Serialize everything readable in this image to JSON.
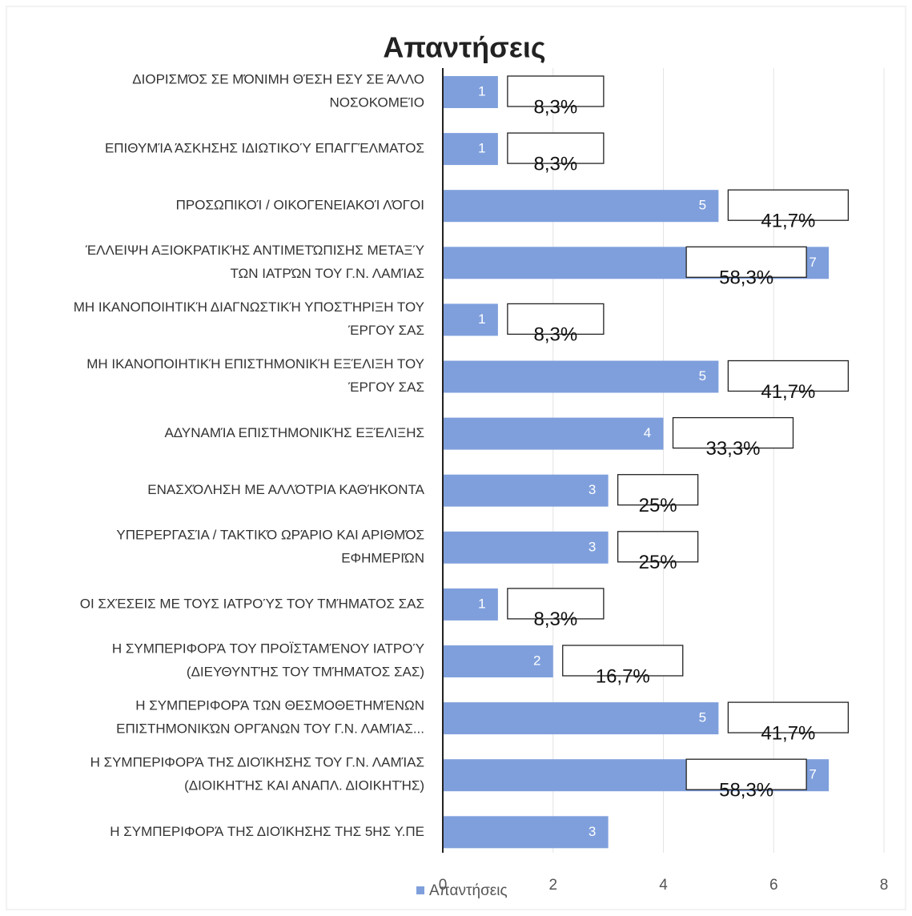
{
  "chart_data": {
    "type": "bar",
    "orientation": "horizontal",
    "title": "Απαντήσεις",
    "categories": [
      "ΔΙΟΡΙΣΜΌΣ ΣΕ ΜΌΝΙΜΗ ΘΈΣΗ ΕΣΥ ΣΕ ΆΛΛΟ\nΝΟΣΟΚΟΜΕΊΟ",
      "ΕΠΙΘΥΜΊΑ ΆΣΚΗΣΗΣ ΙΔΙΩΤΙΚΟΎ ΕΠΑΓΓΈΛΜΑΤΟΣ",
      "ΠΡΟΣΩΠΙΚΟΊ / ΟΙΚΟΓΕΝΕΙΑΚΟΊ ΛΌΓΟΙ",
      "ΈΛΛΕΙΨΗ ΑΞΙΟΚΡΑΤΙΚΉΣ ΑΝΤΙΜΕΤΏΠΙΣΗΣ ΜΕΤΑΞΎ\nΤΩΝ ΙΑΤΡΏΝ ΤΟΥ Γ.Ν. ΛΑΜΊΑΣ",
      "ΜΗ ΙΚΑΝΟΠΟΙΗΤΙΚΉ ΔΙΑΓΝΩΣΤΙΚΉ ΥΠΟΣΤΉΡΙΞΗ ΤΟΥ\nΈΡΓΟΥ ΣΑΣ",
      "ΜΗ ΙΚΑΝΟΠΟΙΗΤΙΚΉ ΕΠΙΣΤΗΜΟΝΙΚΉ ΕΞΈΛΙΞΗ ΤΟΥ\nΈΡΓΟΥ ΣΑΣ",
      "ΑΔΥΝΑΜΊΑ ΕΠΙΣΤΗΜΟΝΙΚΉΣ ΕΞΈΛΙΞΗΣ",
      "ΕΝΑΣΧΌΛΗΣΗ ΜΕ ΑΛΛΌΤΡΙΑ ΚΑΘΉΚΟΝΤΑ",
      "ΥΠΕΡΕΡΓΑΣΊΑ / ΤΑΚΤΙΚΌ ΩΡΆΡΙΟ ΚΑΙ ΑΡΙΘΜΌΣ\nΕΦΗΜΕΡΙΏΝ",
      "ΟΙ ΣΧΈΣΕΙΣ ΜΕ ΤΟΥΣ ΙΑΤΡΟΎΣ ΤΟΥ ΤΜΉΜΑΤΟΣ ΣΑΣ",
      "Η ΣΥΜΠΕΡΙΦΟΡΆ ΤΟΥ ΠΡΟΪΣΤΑΜΈΝΟΥ ΙΑΤΡΟΎ\n(ΔΙΕΥΘΥΝΤΉΣ ΤΟΥ ΤΜΉΜΑΤΟΣ ΣΑΣ)",
      "Η ΣΥΜΠΕΡΙΦΟΡΆ ΤΩΝ ΘΕΣΜΟΘΕΤΗΜΈΝΩΝ\nΕΠΙΣΤΗΜΟΝΙΚΏΝ ΟΡΓΆΝΩΝ ΤΟΥ Γ.Ν. ΛΑΜΊΑΣ...",
      "Η ΣΥΜΠΕΡΙΦΟΡΆ ΤΗΣ ΔΙΟΊΚΗΣΗΣ ΤΟΥ Γ.Ν. ΛΑΜΊΑΣ\n(ΔΙΟΙΚΗΤΉΣ ΚΑΙ ΑΝΑΠΛ. ΔΙΟΙΚΗΤΉΣ)",
      "Η ΣΥΜΠΕΡΙΦΟΡΆ ΤΗΣ ΔΙΟΊΚΗΣΗΣ ΤΗΣ 5ΗΣ Υ.ΠΕ"
    ],
    "series": [
      {
        "name": "Απαντήσεις",
        "color": "#7f9fdc",
        "values": [
          1,
          1,
          5,
          7,
          1,
          5,
          4,
          3,
          3,
          1,
          2,
          5,
          7,
          3
        ]
      }
    ],
    "annotations": [
      "8,3%",
      "8,3%",
      "41,7%",
      "58,3%",
      "8,3%",
      "41,7%",
      "33,3%",
      "25%",
      "25%",
      "8,3%",
      "16,7%",
      "41,7%",
      "58,3%",
      null
    ],
    "xlim": [
      0,
      8
    ],
    "xticks": [
      0,
      2,
      4,
      6,
      8
    ],
    "grid": true,
    "legend": "bottom"
  }
}
